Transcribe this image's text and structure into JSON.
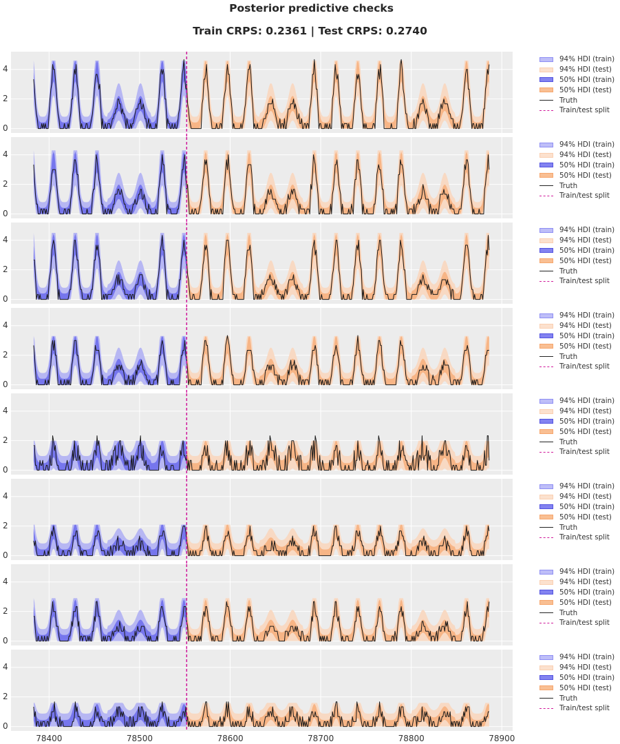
{
  "figure": {
    "title": "Posterior predictive checks",
    "subtitle": "Train CRPS: 0.2361 | Test CRPS: 0.2740"
  },
  "legend": {
    "items": [
      {
        "key": "hdi94_train",
        "label": "94% HDI (train)"
      },
      {
        "key": "hdi94_test",
        "label": "94% HDI (test)"
      },
      {
        "key": "hdi50_train",
        "label": "50% HDI (train)"
      },
      {
        "key": "hdi50_test",
        "label": "50% HDI (test)"
      },
      {
        "key": "truth",
        "label": "Truth"
      },
      {
        "key": "split",
        "label": "Train/test split"
      }
    ]
  },
  "colors": {
    "hdi94_train": "#b7b7f3",
    "hdi94_test": "#f8d9c3",
    "hdi50_train": "#6f6fec",
    "hdi50_test": "#f6b07f",
    "truth": "#1a1a1a",
    "split": "#d0189a",
    "panel_bg": "#ececec",
    "grid": "#ffffff"
  },
  "chart_data": {
    "type": "line",
    "title": "Posterior predictive checks",
    "subtitle": "Train CRPS: 0.2361 | Test CRPS: 0.2740",
    "xlabel": "",
    "ylabel": "",
    "n_panels": 8,
    "sharex": true,
    "sharey": true,
    "xlim": [
      78358,
      78912
    ],
    "ylim": [
      -0.3,
      5.2
    ],
    "x_ticks": [
      78400,
      78500,
      78600,
      78700,
      78800,
      78900
    ],
    "y_ticks": [
      0,
      2,
      4
    ],
    "grid": true,
    "legend_position": "right of each panel",
    "x_start": 78383,
    "x_end": 78886,
    "train_test_split": 78552,
    "metrics": {
      "train_crps": 0.2361,
      "test_crps": 0.274
    },
    "daily_period": 24,
    "peak_centers": [
      78405,
      78429,
      78453,
      78477,
      78501,
      78525,
      78549,
      78573,
      78597,
      78621,
      78645,
      78669,
      78693,
      78717,
      78741,
      78765,
      78789,
      78813,
      78837,
      78861,
      78885
    ],
    "series_note": "Each panel shows Truth (hourly series) with 50% and 94% HDI bands, blue for train and orange for test; weekly pattern of 5 high daily peaks followed by 2 low days",
    "panels": [
      {
        "index": 1,
        "peak_height": 3.9,
        "low_day_height": 1.5,
        "hdi94_top": 4.6,
        "noise": 0.35
      },
      {
        "index": 2,
        "peak_height": 3.5,
        "low_day_height": 1.3,
        "hdi94_top": 4.3,
        "noise": 0.35
      },
      {
        "index": 3,
        "peak_height": 3.7,
        "low_day_height": 1.2,
        "hdi94_top": 4.5,
        "noise": 0.3
      },
      {
        "index": 4,
        "peak_height": 2.7,
        "low_day_height": 1.1,
        "hdi94_top": 3.3,
        "noise": 0.35
      },
      {
        "index": 5,
        "peak_height": 1.4,
        "low_day_height": 1.2,
        "hdi94_top": 2.0,
        "noise": 0.9
      },
      {
        "index": 6,
        "peak_height": 1.6,
        "low_day_height": 0.6,
        "hdi94_top": 2.1,
        "noise": 0.45
      },
      {
        "index": 7,
        "peak_height": 2.2,
        "low_day_height": 0.8,
        "hdi94_top": 2.9,
        "noise": 0.4
      },
      {
        "index": 8,
        "peak_height": 1.0,
        "low_day_height": 0.7,
        "hdi94_top": 1.6,
        "noise": 0.6
      }
    ]
  }
}
